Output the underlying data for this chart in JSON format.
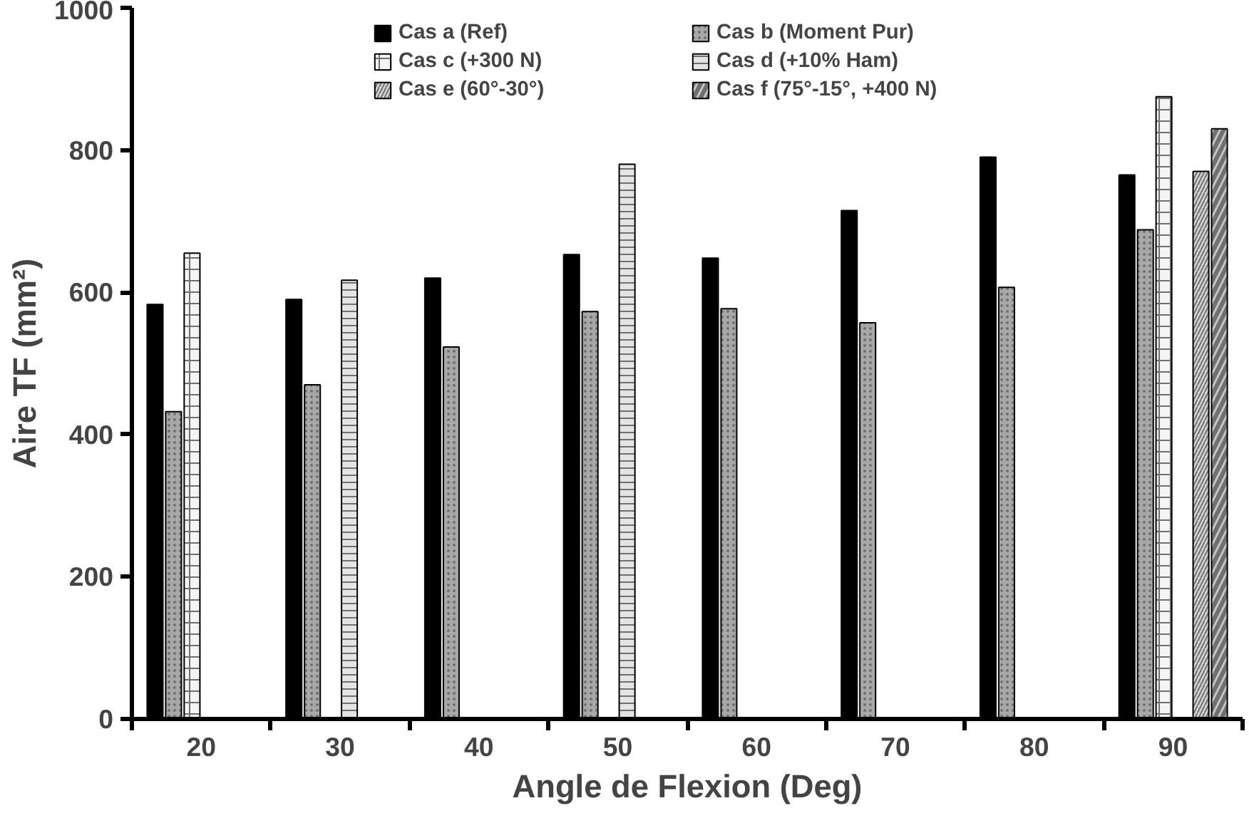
{
  "chart_data": {
    "type": "bar",
    "xlabel": "Angle de Flexion (Deg)",
    "ylabel": "Aire TF (mm²)",
    "categories": [
      "20",
      "30",
      "40",
      "50",
      "60",
      "70",
      "80",
      "90"
    ],
    "series": [
      {
        "name": "Cas a (Ref)",
        "color": "#000000",
        "values": [
          583,
          590,
          620,
          653,
          648,
          715,
          790,
          765
        ]
      },
      {
        "name": "Cas b (Moment Pur)",
        "color": "#a8a8a8",
        "values": [
          432,
          470,
          523,
          573,
          577,
          557,
          607,
          688
        ]
      },
      {
        "name": "Cas c (+300 N)",
        "color": "#f4f4f4",
        "values": [
          655,
          null,
          null,
          null,
          null,
          null,
          null,
          875
        ]
      },
      {
        "name": "Cas d (+10% Ham)",
        "color": "#e4e4e4",
        "values": [
          null,
          617,
          null,
          780,
          null,
          null,
          null,
          null
        ]
      },
      {
        "name": "Cas e (60°-30°)",
        "color": "#d4d4d4",
        "values": [
          null,
          null,
          null,
          null,
          null,
          null,
          null,
          770
        ]
      },
      {
        "name": "Cas f (75°-15°, +400 N)",
        "color": "#c4c4c4",
        "values": [
          null,
          null,
          null,
          null,
          null,
          null,
          null,
          830
        ]
      }
    ],
    "ylim": [
      0,
      1000
    ],
    "yticks": [
      0,
      200,
      400,
      600,
      800,
      1000
    ],
    "grid": false,
    "legend": "top"
  }
}
